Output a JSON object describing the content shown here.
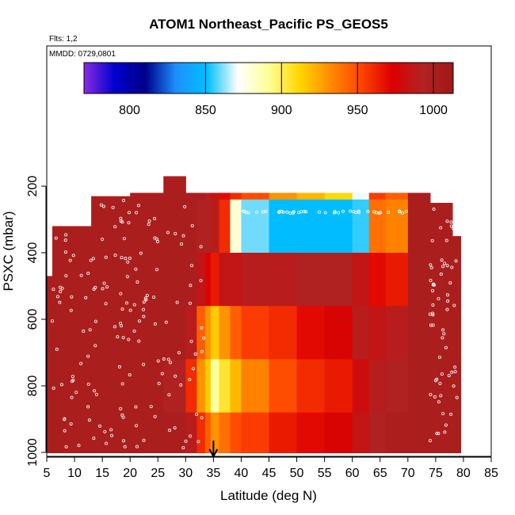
{
  "chart_data": {
    "type": "heatmap",
    "title": "ATOM1 Northeast_Pacific PS_GEOS5",
    "subtitle_flights": "Flts: 1,2",
    "subtitle_dates": "MMDD: 0729,0801",
    "xlabel": "Latitude (deg N)",
    "ylabel": "PSXC (mbar)",
    "xlim": [
      5,
      85
    ],
    "ylim": [
      1000,
      100
    ],
    "x_ticks": [
      5,
      10,
      15,
      20,
      25,
      30,
      35,
      40,
      45,
      50,
      55,
      60,
      65,
      70,
      75,
      80,
      85
    ],
    "y_ticks": [
      200,
      400,
      600,
      800,
      1000
    ],
    "colorbar": {
      "range": [
        770,
        1013
      ],
      "ticks": [
        800,
        850,
        900,
        950,
        1000
      ],
      "colors": [
        "#8a2be2",
        "#0000cd",
        "#00008b",
        "#1e90ff",
        "#00bfff",
        "#ffffff",
        "#ffff99",
        "#ffd700",
        "#ff8c00",
        "#ff4500",
        "#dd0000",
        "#b22222",
        "#a01818"
      ]
    },
    "marker": {
      "x": 35,
      "label": "arrow"
    },
    "columns": [
      {
        "x0": 5,
        "x1": 6,
        "top": 470,
        "values": [
          1001,
          1001,
          1001,
          1001
        ]
      },
      {
        "x0": 6,
        "x1": 13,
        "top": 320,
        "values": [
          1001,
          1001,
          1001,
          1001,
          1001
        ]
      },
      {
        "x0": 13,
        "x1": 20,
        "top": 230,
        "values": [
          1001,
          1001,
          1001,
          1001,
          1001,
          1001
        ]
      },
      {
        "x0": 20,
        "x1": 26,
        "top": 220,
        "values": [
          1001,
          1001,
          1001,
          1001,
          1001,
          1001
        ]
      },
      {
        "x0": 26,
        "x1": 30,
        "top": 170,
        "values": [
          1000,
          1001,
          1001,
          1001,
          995,
          1001
        ]
      },
      {
        "x0": 30,
        "x1": 32,
        "top": 220,
        "values": [
          1000,
          1000,
          1000,
          990,
          960,
          990
        ]
      },
      {
        "x0": 32,
        "x1": 33.5,
        "top": 220,
        "values": [
          1000,
          995,
          985,
          945,
          930,
          960
        ]
      },
      {
        "x0": 33.5,
        "x1": 34.5,
        "top": 220,
        "values": [
          990,
          995,
          975,
          930,
          915,
          945
        ]
      },
      {
        "x0": 34.5,
        "x1": 36,
        "top": 220,
        "values": [
          985,
          990,
          965,
          915,
          890,
          930
        ]
      },
      {
        "x0": 36,
        "x1": 38,
        "top": 220,
        "values": [
          970,
          960,
          985,
          930,
          905,
          940
        ]
      },
      {
        "x0": 38,
        "x1": 40,
        "top": 220,
        "values": [
          960,
          880,
          985,
          945,
          920,
          950
        ]
      },
      {
        "x0": 40,
        "x1": 45,
        "top": 220,
        "values": [
          950,
          860,
          990,
          955,
          935,
          955
        ]
      },
      {
        "x0": 45,
        "x1": 50,
        "top": 220,
        "values": [
          930,
          850,
          990,
          960,
          950,
          965
        ]
      },
      {
        "x0": 50,
        "x1": 55,
        "top": 220,
        "values": [
          920,
          850,
          995,
          970,
          960,
          970
        ]
      },
      {
        "x0": 55,
        "x1": 60,
        "top": 220,
        "values": [
          910,
          850,
          995,
          975,
          965,
          975
        ]
      },
      {
        "x0": 60,
        "x1": 63,
        "top": 220,
        "values": [
          870,
          855,
          985,
          990,
          980,
          985
        ]
      },
      {
        "x0": 63,
        "x1": 66,
        "top": 220,
        "values": [
          955,
          940,
          970,
          985,
          990,
          995
        ]
      },
      {
        "x0": 66,
        "x1": 70,
        "top": 220,
        "values": [
          945,
          935,
          965,
          990,
          995,
          1000
        ]
      },
      {
        "x0": 70,
        "x1": 74,
        "top": 220,
        "values": [
          1001,
          1001,
          1001,
          1001,
          1001,
          1001
        ]
      },
      {
        "x0": 74,
        "x1": 78,
        "top": 250,
        "values": [
          1001,
          1001,
          1001,
          1001,
          1001,
          1001
        ]
      },
      {
        "x0": 78,
        "x1": 79.5,
        "top": 350,
        "values": [
          1001,
          1001,
          1001,
          1001,
          1001
        ]
      }
    ],
    "bands": [
      140,
      240,
      400,
      560,
      720,
      880,
      1001
    ]
  }
}
